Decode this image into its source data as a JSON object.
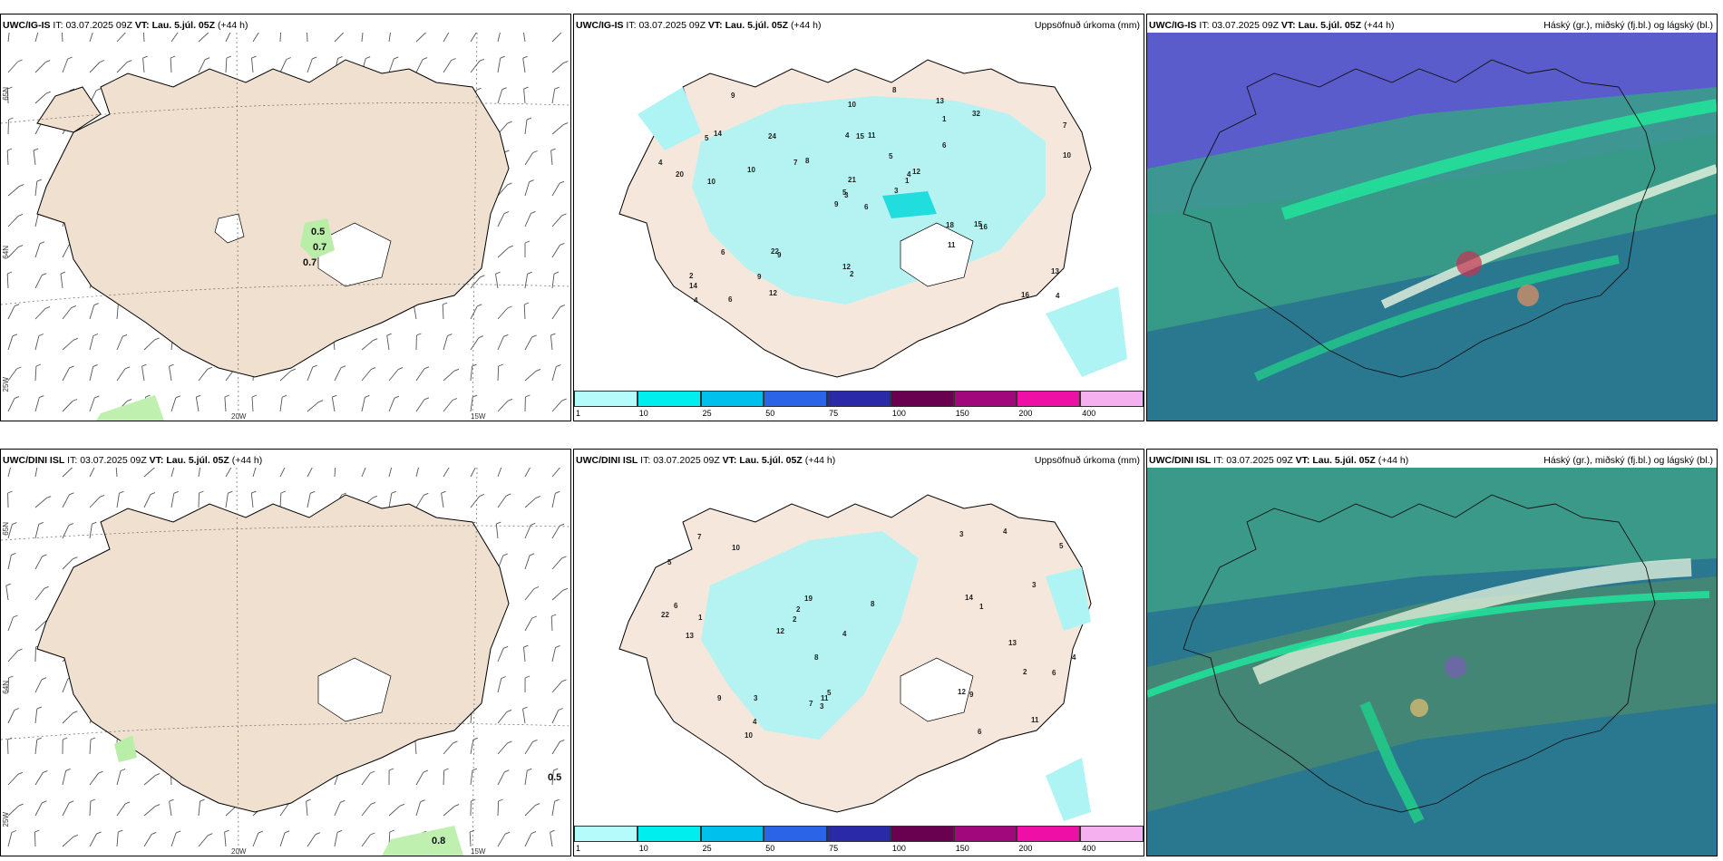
{
  "rows": [
    {
      "model": "UWC/IG-IS",
      "init_label": "IT:",
      "init_time": "03.07.2025 09Z",
      "valid_label": "VT:",
      "valid_time": "Lau. 5.júl. 05Z",
      "lead": "(+44 h)",
      "wind_values": [
        "0.5",
        "0.7",
        "0.7"
      ],
      "precip_values": [
        "6",
        "5",
        "3",
        "2",
        "4",
        "9",
        "13",
        "11",
        "1",
        "3",
        "9",
        "4",
        "10",
        "7",
        "9",
        "6",
        "6",
        "4",
        "5",
        "6",
        "8",
        "14",
        "9",
        "15",
        "12",
        "16",
        "14",
        "10",
        "20",
        "18",
        "10",
        "5",
        "12",
        "21",
        "24",
        "32",
        "22",
        "16",
        "13",
        "15",
        "8",
        "7",
        "10",
        "11",
        "12",
        "4",
        "1",
        "4",
        "2"
      ]
    },
    {
      "model": "UWC/DINI ISL",
      "init_label": "IT:",
      "init_time": "03.07.2025 09Z",
      "valid_label": "VT:",
      "valid_time": "Lau. 5.júl. 05Z",
      "lead": "(+44 h)",
      "wind_values": [
        "0.5",
        "0.8"
      ],
      "precip_values": [
        "3",
        "2",
        "5",
        "11",
        "4",
        "9",
        "13",
        "10",
        "14",
        "8",
        "6",
        "12",
        "19",
        "11",
        "22",
        "7",
        "3",
        "4",
        "5",
        "1",
        "6",
        "3",
        "2",
        "10",
        "12",
        "8",
        "9",
        "4",
        "7",
        "13",
        "5",
        "1",
        "2",
        "3",
        "6",
        "4"
      ]
    }
  ],
  "precip_panel": {
    "title": "Uppsöfnuð úrkoma (mm)"
  },
  "cloud_panel": {
    "title": "Háský (gr.), miðský (fj.bl.) og lágský (bl.)"
  },
  "axis_labels": {
    "lat_top": "65N",
    "lat_mid": "64N",
    "lat_left": "25W",
    "lon_20": "20W",
    "lon_15": "15W",
    "lat_right_top": "65N",
    "lat_right_mid": "64N"
  },
  "colorbar": {
    "labels": [
      "1",
      "10",
      "25",
      "50",
      "75",
      "100",
      "150",
      "200",
      "400"
    ],
    "colors": [
      "#b6fbfb",
      "#00eeee",
      "#00c0ee",
      "#2c64e8",
      "#2a2aa8",
      "#6a0050",
      "#a0087c",
      "#ee10a6",
      "#f5b0f0"
    ]
  },
  "colors": {
    "land": "#f2e3d6",
    "wind_land": "#efe0d0",
    "precip_fill": "#aef4f4",
    "precip_heavy": "#22dddd",
    "green": "#c0f0b0",
    "sea_cloud": "#1f6e86",
    "cloud_mid": "#3a9c88",
    "cloud_low": "#5060c8",
    "cloud_green": "#22c98a"
  }
}
